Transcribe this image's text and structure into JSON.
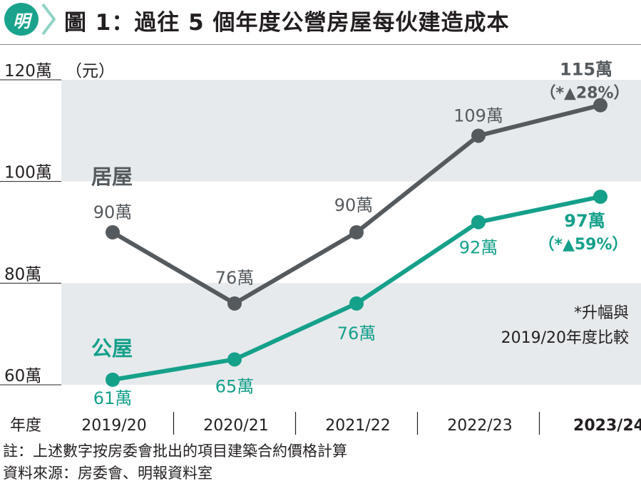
{
  "header": {
    "logo_text": "明",
    "title": "圖 1：過往 5 個年度公營房屋每伙建造成本",
    "colors": {
      "logo": "#1aa38c",
      "chevron": "#8fd3c4"
    }
  },
  "chart_data": {
    "type": "line",
    "title": "圖 1：過往 5 個年度公營房屋每伙建造成本",
    "ylim": [
      60,
      120
    ],
    "ytick_values": [
      60,
      80,
      100,
      120
    ],
    "yticks": [
      "60萬",
      "80萬",
      "100萬",
      "120萬"
    ],
    "yunit": "（元）",
    "xlabel": "年度",
    "categories": [
      "2019/20",
      "2020/21",
      "2021/22",
      "2022/23",
      "2023/24"
    ],
    "series": [
      {
        "name": "居屋",
        "color": "#555a5e",
        "values": [
          90,
          76,
          90,
          109,
          115
        ],
        "labels": [
          "90萬",
          "76萬",
          "90萬",
          "109萬",
          "115萬"
        ],
        "change": "（*▲28%）"
      },
      {
        "name": "公屋",
        "color": "#15a08a",
        "values": [
          61,
          65,
          76,
          92,
          97
        ],
        "labels": [
          "61萬",
          "65萬",
          "76萬",
          "92萬",
          "97萬"
        ],
        "change": "（*▲59%）"
      }
    ],
    "footnote": [
      "*升幅與",
      "2019/20年度比較"
    ],
    "grid": "alternating bands",
    "band_color": "#e6eaec"
  },
  "notes": {
    "note": "註：上述數字按房委會批出的項目建築合約價格計算",
    "source": "資料來源：房委會、明報資料室"
  }
}
